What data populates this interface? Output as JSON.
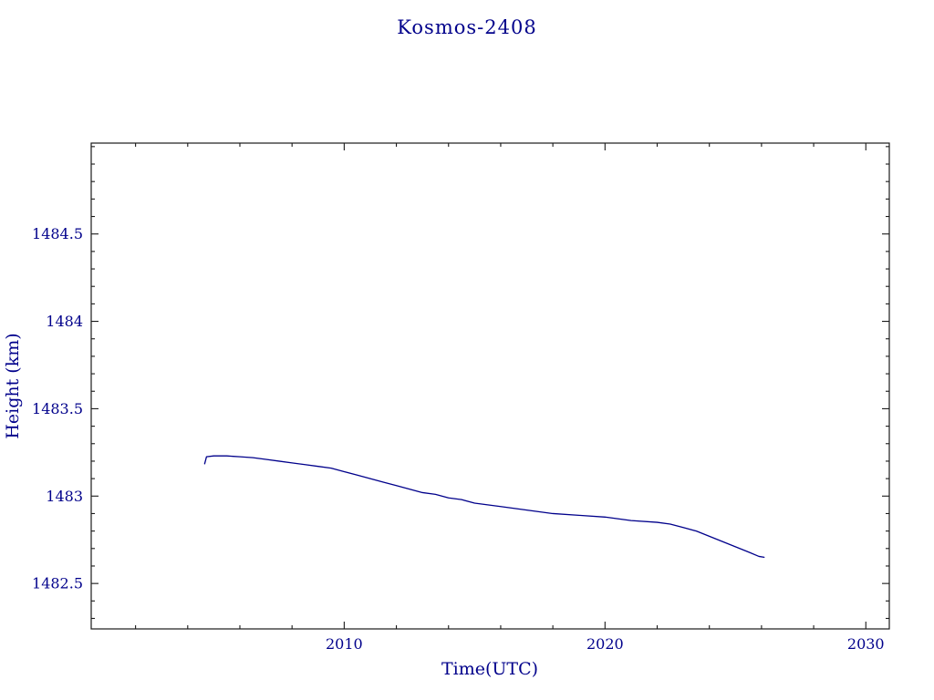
{
  "chart_data": {
    "type": "line",
    "title": "Kosmos-2408",
    "xlabel": "Time(UTC)",
    "ylabel": "Height (km)",
    "xlim": [
      2000.3,
      2030.9
    ],
    "ylim": [
      1482.24,
      1485.02
    ],
    "x_ticks_major": [
      2010,
      2020,
      2030
    ],
    "x_tick_labels": [
      "2010",
      "2020",
      "2030"
    ],
    "x_minor_step": 2,
    "y_ticks_major": [
      1482.5,
      1483,
      1483.5,
      1484,
      1484.5
    ],
    "y_tick_labels": [
      "1482.5",
      "1483",
      "1483.5",
      "1484",
      "1484.5"
    ],
    "y_minor_step": 0.1,
    "grid": false,
    "legend": false,
    "line_color": "#00008b",
    "text_color": "#00008b",
    "frame_color": "#1a1a1a",
    "series": [
      {
        "name": "height",
        "x": [
          2004.65,
          2004.72,
          2005.0,
          2005.5,
          2006.0,
          2006.5,
          2007.0,
          2007.5,
          2008.0,
          2008.5,
          2009.0,
          2009.5,
          2010.0,
          2010.5,
          2011.0,
          2011.5,
          2012.0,
          2012.5,
          2013.0,
          2013.5,
          2014.0,
          2014.5,
          2015.0,
          2015.5,
          2016.0,
          2017.0,
          2018.0,
          2019.0,
          2020.0,
          2021.0,
          2022.0,
          2022.5,
          2023.0,
          2023.5,
          2024.0,
          2024.5,
          2025.0,
          2025.5,
          2025.9,
          2026.1
        ],
        "y": [
          1483.185,
          1483.225,
          1483.23,
          1483.23,
          1483.225,
          1483.22,
          1483.21,
          1483.2,
          1483.19,
          1483.18,
          1483.17,
          1483.16,
          1483.14,
          1483.12,
          1483.1,
          1483.08,
          1483.06,
          1483.04,
          1483.02,
          1483.01,
          1482.99,
          1482.98,
          1482.96,
          1482.95,
          1482.94,
          1482.92,
          1482.9,
          1482.89,
          1482.88,
          1482.86,
          1482.85,
          1482.84,
          1482.82,
          1482.8,
          1482.77,
          1482.74,
          1482.71,
          1482.68,
          1482.655,
          1482.65
        ]
      }
    ]
  }
}
